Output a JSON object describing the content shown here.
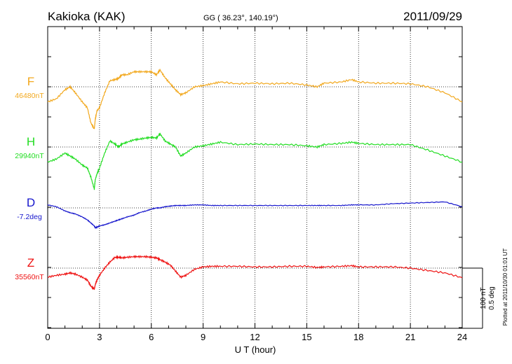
{
  "chart_data": {
    "type": "line",
    "title": "Kakioka (KAK)",
    "subtitle": "GG ( 36.23°, 140.19°)",
    "date": "2011/09/29",
    "xlabel": "U T (hour)",
    "xlim": [
      0,
      24
    ],
    "x_ticks": [
      "0",
      "3",
      "6",
      "9",
      "12",
      "15",
      "18",
      "21",
      "24"
    ],
    "grid": true,
    "scale_bar": {
      "value_label": "100 nT",
      "deg_label": "0.5 deg",
      "nT_per_bar": 100
    },
    "footer_note": "Plotted at 2011/10/30 01:01  UT",
    "x": [
      0,
      0.5,
      1.0,
      1.3,
      1.6,
      2.0,
      2.3,
      2.5,
      2.7,
      2.75,
      2.85,
      3.0,
      3.3,
      3.6,
      3.9,
      4.1,
      4.3,
      4.6,
      5.0,
      5.3,
      5.7,
      6.0,
      6.3,
      6.5,
      6.8,
      7.1,
      7.4,
      7.7,
      8.0,
      8.5,
      9.0,
      9.5,
      10.0,
      11.0,
      12.0,
      13.0,
      14.0,
      15.0,
      15.6,
      16.0,
      17.0,
      17.6,
      18.0,
      19.0,
      20.0,
      21.0,
      22.0,
      23.0,
      24.0
    ],
    "series": [
      {
        "name": "F",
        "baseline_label": "46480nT",
        "color": "#f2a81d",
        "values": [
          -25,
          -20,
          -5,
          0,
          -10,
          -25,
          -35,
          -60,
          -70,
          -55,
          -40,
          -35,
          -10,
          10,
          12,
          14,
          20,
          20,
          25,
          25,
          25,
          25,
          20,
          28,
          15,
          5,
          -5,
          -13,
          -10,
          0,
          2,
          5,
          8,
          5,
          6,
          5,
          6,
          3,
          0,
          6,
          8,
          12,
          8,
          6,
          6,
          5,
          0,
          -10,
          -25
        ]
      },
      {
        "name": "H",
        "baseline_label": "29940nT",
        "color": "#22dd22",
        "values": [
          -25,
          -20,
          -10,
          -15,
          -20,
          -30,
          -35,
          -50,
          -70,
          -55,
          -45,
          -35,
          -10,
          10,
          5,
          0,
          5,
          8,
          12,
          13,
          15,
          16,
          15,
          22,
          10,
          5,
          0,
          -15,
          -10,
          0,
          2,
          5,
          8,
          4,
          5,
          4,
          4,
          2,
          0,
          4,
          6,
          8,
          6,
          4,
          4,
          4,
          -5,
          -15,
          -25
        ]
      },
      {
        "name": "D",
        "baseline_label": "-7.2deg",
        "color": "#1515cc",
        "values": [
          5,
          2,
          -5,
          -8,
          -10,
          -15,
          -20,
          -25,
          -30,
          -33,
          -32,
          -30,
          -28,
          -25,
          -22,
          -20,
          -18,
          -15,
          -12,
          -8,
          -5,
          -2,
          0,
          0,
          2,
          3,
          4,
          4,
          4,
          5,
          5,
          4,
          4,
          4,
          4,
          4,
          4,
          4,
          4,
          4,
          4,
          5,
          5,
          5,
          7,
          8,
          9,
          10,
          2
        ]
      },
      {
        "name": "Z",
        "baseline_label": "35560nT",
        "color": "#ee1111",
        "values": [
          -15,
          -12,
          -10,
          -8,
          -10,
          -15,
          -20,
          -30,
          -35,
          -28,
          -20,
          -12,
          0,
          10,
          18,
          18,
          17,
          18,
          19,
          19,
          19,
          18,
          17,
          14,
          10,
          5,
          -5,
          -15,
          -12,
          -2,
          2,
          3,
          3,
          3,
          2,
          2,
          3,
          3,
          1,
          2,
          3,
          4,
          2,
          2,
          2,
          0,
          -4,
          -8,
          -16
        ]
      }
    ]
  }
}
